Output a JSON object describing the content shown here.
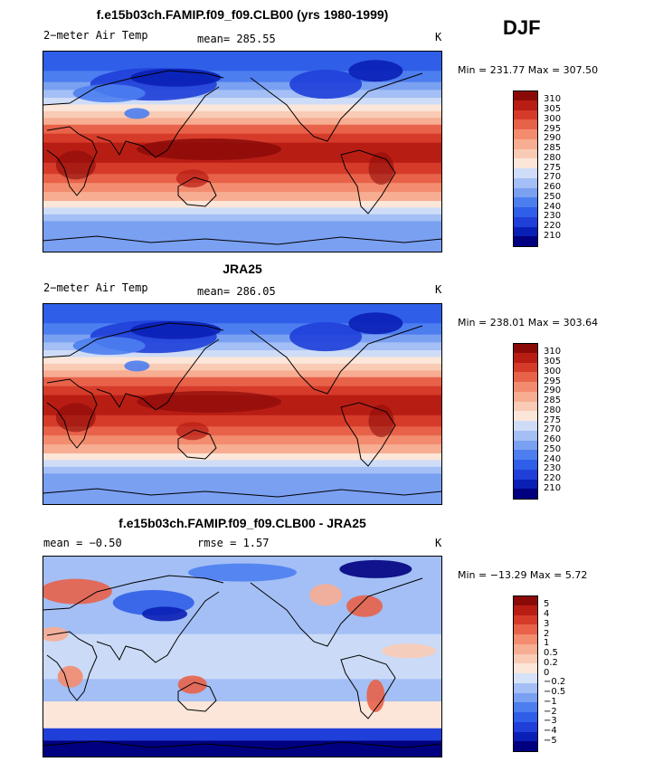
{
  "season": "DJF",
  "palettes": {
    "temp": [
      "#000080",
      "#0a1fb5",
      "#1f3fd8",
      "#2f5ee8",
      "#4d7ef0",
      "#7aa0f2",
      "#a3bff5",
      "#cfdcf7",
      "#fbe6d9",
      "#f9cbb5",
      "#f7ad92",
      "#f38c6e",
      "#e8624a",
      "#d63b2a",
      "#b81d14",
      "#8b0a08"
    ],
    "diff": [
      "#000080",
      "#0a1fb5",
      "#1f3fd8",
      "#2f5ee8",
      "#4d7ef0",
      "#7aa0f2",
      "#a3bff5",
      "#d5e2f8",
      "#fbe6d9",
      "#f9cbb5",
      "#f7ad92",
      "#f38c6e",
      "#e8624a",
      "#d63b2a",
      "#b81d14",
      "#8b0a08"
    ]
  },
  "panels": [
    {
      "title": "f.e15b03ch.FAMIP.f09_f09.CLB00 (yrs 1980-1999)",
      "left_text": "2−meter Air Temp",
      "center_text": "mean=  285.55",
      "units": "K",
      "minmax": "Min = 231.77 Max = 307.50",
      "colorbar_labels": [
        "310",
        "305",
        "300",
        "295",
        "290",
        "285",
        "280",
        "275",
        "270",
        "260",
        "250",
        "240",
        "230",
        "220",
        "210"
      ],
      "kind": "temp"
    },
    {
      "title": "JRA25",
      "left_text": "2−meter Air Temp",
      "center_text": "mean=  286.05",
      "units": "K",
      "minmax": "Min = 238.01 Max = 303.64",
      "colorbar_labels": [
        "310",
        "305",
        "300",
        "295",
        "290",
        "285",
        "280",
        "275",
        "270",
        "260",
        "250",
        "240",
        "230",
        "220",
        "210"
      ],
      "kind": "temp"
    },
    {
      "title": "f.e15b03ch.FAMIP.f09_f09.CLB00 - JRA25",
      "left_text": "mean =   −0.50",
      "center_text": "rmse =    1.57",
      "units": "K",
      "minmax": "Min = −13.29 Max =   5.72",
      "colorbar_labels": [
        "5",
        "4",
        "3",
        "2",
        "1",
        "0.5",
        "0.2",
        "0",
        "−0.2",
        "−0.5",
        "−1",
        "−2",
        "−3",
        "−4",
        "−5"
      ],
      "kind": "diff"
    }
  ]
}
